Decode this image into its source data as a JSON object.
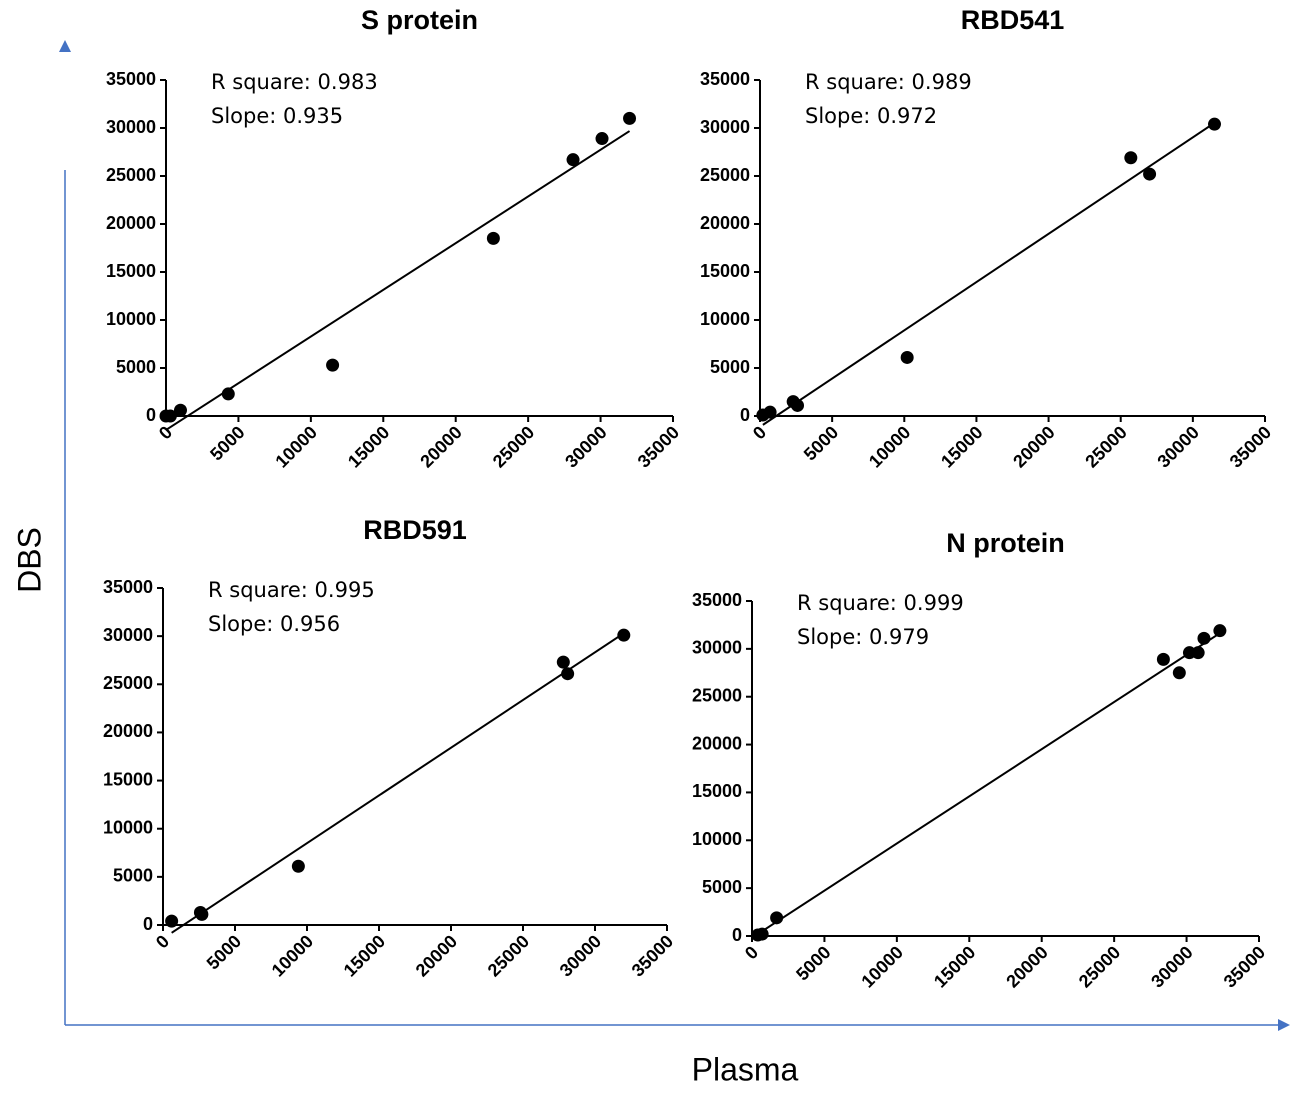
{
  "chart_data": [
    {
      "type": "scatter",
      "title": "S protein",
      "annotations": [
        "R square: 0.983",
        "Slope: 0.935"
      ],
      "x": [
        0,
        300,
        1000,
        4300,
        11500,
        22600,
        28100,
        30100,
        32000
      ],
      "y": [
        0,
        0,
        600,
        2300,
        5300,
        18500,
        26700,
        28900,
        31000
      ],
      "color": "#000000",
      "xlim": [
        0,
        35000
      ],
      "ylim": [
        0,
        35000
      ],
      "xticks": [
        0,
        5000,
        10000,
        15000,
        20000,
        25000,
        30000,
        35000
      ],
      "yticks": [
        0,
        5000,
        10000,
        15000,
        20000,
        25000,
        30000,
        35000
      ],
      "fit_line": true
    },
    {
      "type": "scatter",
      "title": "RBD541",
      "annotations": [
        "R square: 0.989",
        "Slope: 0.972"
      ],
      "x": [
        200,
        700,
        2300,
        2600,
        10200,
        25700,
        27000,
        31500
      ],
      "y": [
        100,
        400,
        1500,
        1100,
        6100,
        26900,
        25200,
        30400
      ],
      "color": "#000000",
      "xlim": [
        0,
        35000
      ],
      "ylim": [
        0,
        35000
      ],
      "xticks": [
        0,
        5000,
        10000,
        15000,
        20000,
        25000,
        30000,
        35000
      ],
      "yticks": [
        0,
        5000,
        10000,
        15000,
        20000,
        25000,
        30000,
        35000
      ],
      "fit_line": true
    },
    {
      "type": "scatter",
      "title": "RBD591",
      "annotations": [
        "R square: 0.995",
        "Slope: 0.956"
      ],
      "x": [
        600,
        2600,
        2700,
        9400,
        27800,
        28100,
        32000
      ],
      "y": [
        400,
        1300,
        1100,
        6100,
        27300,
        26100,
        30100
      ],
      "color": "#000000",
      "xlim": [
        0,
        35000
      ],
      "ylim": [
        0,
        35000
      ],
      "xticks": [
        0,
        5000,
        10000,
        15000,
        20000,
        25000,
        30000,
        35000
      ],
      "yticks": [
        0,
        5000,
        10000,
        15000,
        20000,
        25000,
        30000,
        35000
      ],
      "fit_line": true
    },
    {
      "type": "scatter",
      "title": "N protein",
      "annotations": [
        "R square: 0.999",
        "Slope: 0.979"
      ],
      "x": [
        400,
        700,
        1700,
        28400,
        29500,
        30200,
        30800,
        31200,
        32300
      ],
      "y": [
        100,
        200,
        1900,
        28900,
        27500,
        29600,
        29600,
        31100,
        31900
      ],
      "color": "#000000",
      "xlim": [
        0,
        35000
      ],
      "ylim": [
        0,
        35000
      ],
      "xticks": [
        0,
        5000,
        10000,
        15000,
        20000,
        25000,
        30000,
        35000
      ],
      "yticks": [
        0,
        5000,
        10000,
        15000,
        20000,
        25000,
        30000,
        35000
      ],
      "fit_line": true
    }
  ],
  "shared_ylabel": "DBS",
  "shared_xlabel": "Plasma"
}
